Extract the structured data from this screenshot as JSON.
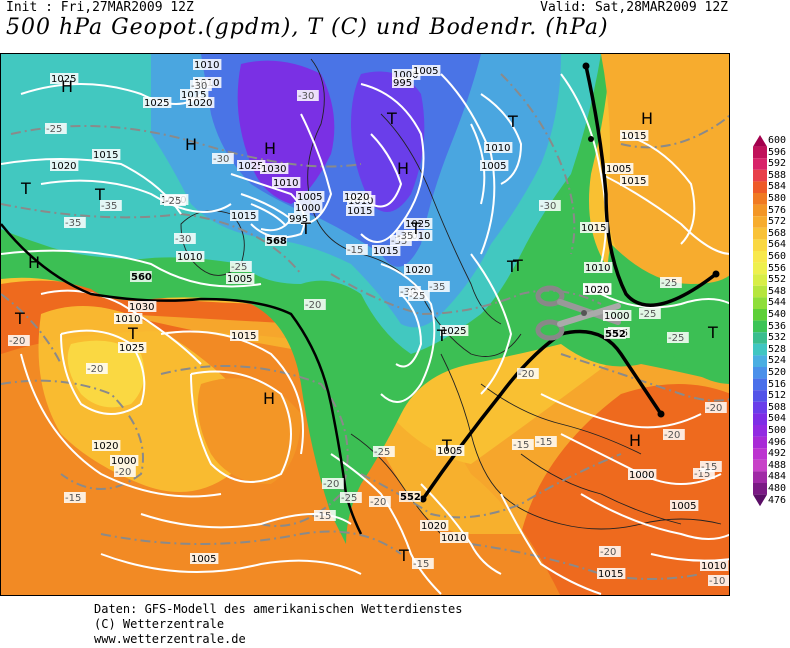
{
  "header": {
    "init": "Init : Fri,27MAR2009 12Z",
    "valid": "Valid: Sat,28MAR2009 12Z",
    "title": "500 hPa Geopot.(gpdm), T (C) und Bodendr. (hPa)"
  },
  "legend": {
    "values": [
      "600",
      "596",
      "592",
      "588",
      "584",
      "580",
      "576",
      "572",
      "568",
      "564",
      "560",
      "556",
      "552",
      "548",
      "544",
      "540",
      "536",
      "532",
      "528",
      "524",
      "520",
      "516",
      "512",
      "508",
      "504",
      "500",
      "496",
      "492",
      "488",
      "484",
      "480",
      "476"
    ],
    "colors": [
      "#a3004d",
      "#c0125a",
      "#d8246a",
      "#e8404a",
      "#ee5a28",
      "#f07a22",
      "#f39626",
      "#f7ac2e",
      "#f9c238",
      "#fad842",
      "#f8e84c",
      "#eef04e",
      "#d8ee46",
      "#b6e63e",
      "#8ede3a",
      "#5ed038",
      "#3cc456",
      "#3abe8e",
      "#40c6c2",
      "#4aaee2",
      "#4a90ea",
      "#4a70ea",
      "#5454e8",
      "#6a3eea",
      "#7e2ee6",
      "#922ae2",
      "#a82ad6",
      "#bc34d0",
      "#c842c8",
      "#a02aa6",
      "#7a1a84",
      "#5a0e66"
    ]
  },
  "map": {
    "pressure_labels": [
      "1025",
      "1010",
      "1015",
      "1010",
      "1020",
      "1025",
      "1020",
      "1015",
      "1020",
      "1025",
      "1030",
      "1010",
      "1005",
      "1000",
      "995",
      "1015",
      "1010",
      "1005",
      "1000",
      "995",
      "1005",
      "1010",
      "1005",
      "1010",
      "1015",
      "1020",
      "1025",
      "1010",
      "1015",
      "1020",
      "1025",
      "1010",
      "1005",
      "1000",
      "995",
      "1000",
      "1005",
      "1015",
      "1010",
      "1030",
      "1025",
      "1020",
      "1000",
      "1005",
      "1010",
      "1015",
      "1020",
      "1015",
      "1005",
      "1020",
      "1015",
      "1010",
      "1005",
      "1015"
    ],
    "temp_labels": [
      "-25",
      "-30",
      "-30",
      "-25",
      "-35",
      "-35",
      "-30",
      "-30",
      "-25",
      "-35",
      "-35",
      "-30",
      "-35",
      "-25",
      "-20",
      "-15",
      "-20",
      "-15",
      "-20",
      "-15",
      "-20",
      "-25",
      "-20",
      "-15",
      "-20",
      "-15",
      "-25",
      "-20",
      "-25",
      "-15",
      "-20",
      "-15",
      "-10",
      "-25",
      "-30",
      "-20",
      "-15",
      "-20",
      "-25"
    ],
    "geopot_labels": [
      "568",
      "552",
      "552",
      "560"
    ],
    "high_marks": [
      "H",
      "H",
      "H",
      "H",
      "H",
      "H",
      "H",
      "H"
    ],
    "low_marks": [
      "T",
      "T",
      "T",
      "T",
      "T",
      "T",
      "T",
      "T",
      "T",
      "T",
      "T",
      "T",
      "T",
      "T"
    ]
  },
  "credits": {
    "line1": "Daten: GFS-Modell des amerikanischen Wetterdienstes",
    "line2": "(C) Wetterzentrale",
    "line3": "www.wetterzentrale.de"
  }
}
